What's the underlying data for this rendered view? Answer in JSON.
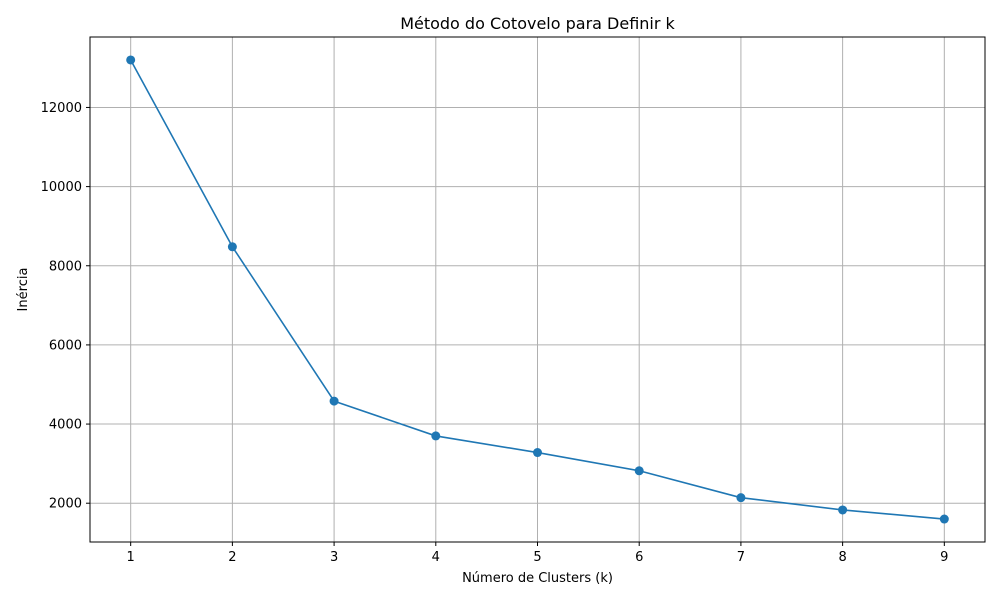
{
  "chart_data": {
    "type": "line",
    "title": "Método do Cotovelo para Definir k",
    "xlabel": "Número de Clusters (k)",
    "ylabel": "Inércia",
    "x": [
      1,
      2,
      3,
      4,
      5,
      6,
      7,
      8,
      9
    ],
    "series": [
      {
        "values": [
          13200,
          8480,
          4580,
          3700,
          3280,
          2820,
          2140,
          1830,
          1600
        ],
        "color": "#1f77b4",
        "marker": "circle"
      }
    ],
    "x_ticks": [
      "1",
      "2",
      "3",
      "4",
      "5",
      "6",
      "7",
      "8",
      "9"
    ],
    "y_ticks": [
      "2000",
      "4000",
      "6000",
      "8000",
      "10000",
      "12000"
    ],
    "xlim": [
      0.6,
      9.4
    ],
    "ylim": [
      1020,
      13780
    ],
    "grid": true
  }
}
